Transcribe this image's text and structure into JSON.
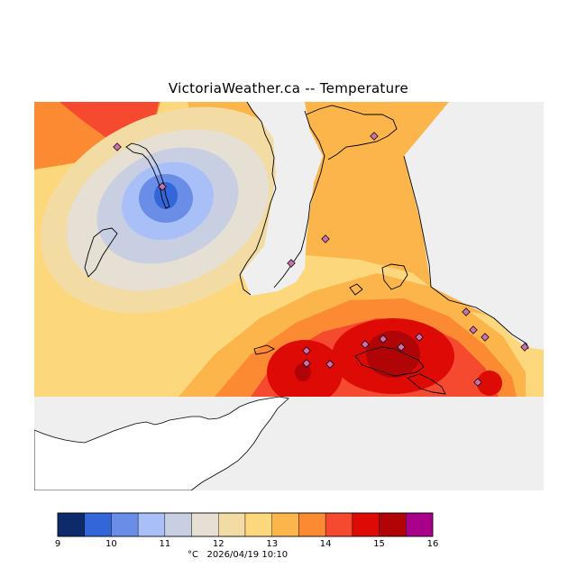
{
  "title": "VictoriaWeather.ca -- Temperature",
  "colorbar": {
    "unit": "°C",
    "timestamp": "2026/04/19 10:10",
    "ticks": [
      "9",
      "10",
      "11",
      "12",
      "13",
      "14",
      "15",
      "16"
    ],
    "levels": [
      {
        "min": 9.0,
        "max": 9.5,
        "color": "#0d2a6b"
      },
      {
        "min": 9.5,
        "max": 10.0,
        "color": "#3366d9"
      },
      {
        "min": 10.0,
        "max": 10.5,
        "color": "#6a8ee8"
      },
      {
        "min": 10.5,
        "max": 11.0,
        "color": "#a9bff7"
      },
      {
        "min": 11.0,
        "max": 11.5,
        "color": "#c8cfe3"
      },
      {
        "min": 11.5,
        "max": 12.0,
        "color": "#e6dfd3"
      },
      {
        "min": 12.0,
        "max": 12.5,
        "color": "#f2dca4"
      },
      {
        "min": 12.5,
        "max": 13.0,
        "color": "#fdd77c"
      },
      {
        "min": 13.0,
        "max": 13.5,
        "color": "#fbb54a"
      },
      {
        "min": 13.5,
        "max": 14.0,
        "color": "#fb8a32"
      },
      {
        "min": 14.0,
        "max": 14.5,
        "color": "#f54a2f"
      },
      {
        "min": 14.5,
        "max": 15.0,
        "color": "#dd0a06"
      },
      {
        "min": 15.0,
        "max": 15.5,
        "color": "#b00406"
      },
      {
        "min": 15.5,
        "max": 16.0,
        "color": "#a8008b"
      }
    ]
  },
  "map": {
    "no_data_color": "#efefef",
    "land_color": "#ffffff",
    "coast_color": "#000000",
    "station_color": "#c870b0"
  }
}
